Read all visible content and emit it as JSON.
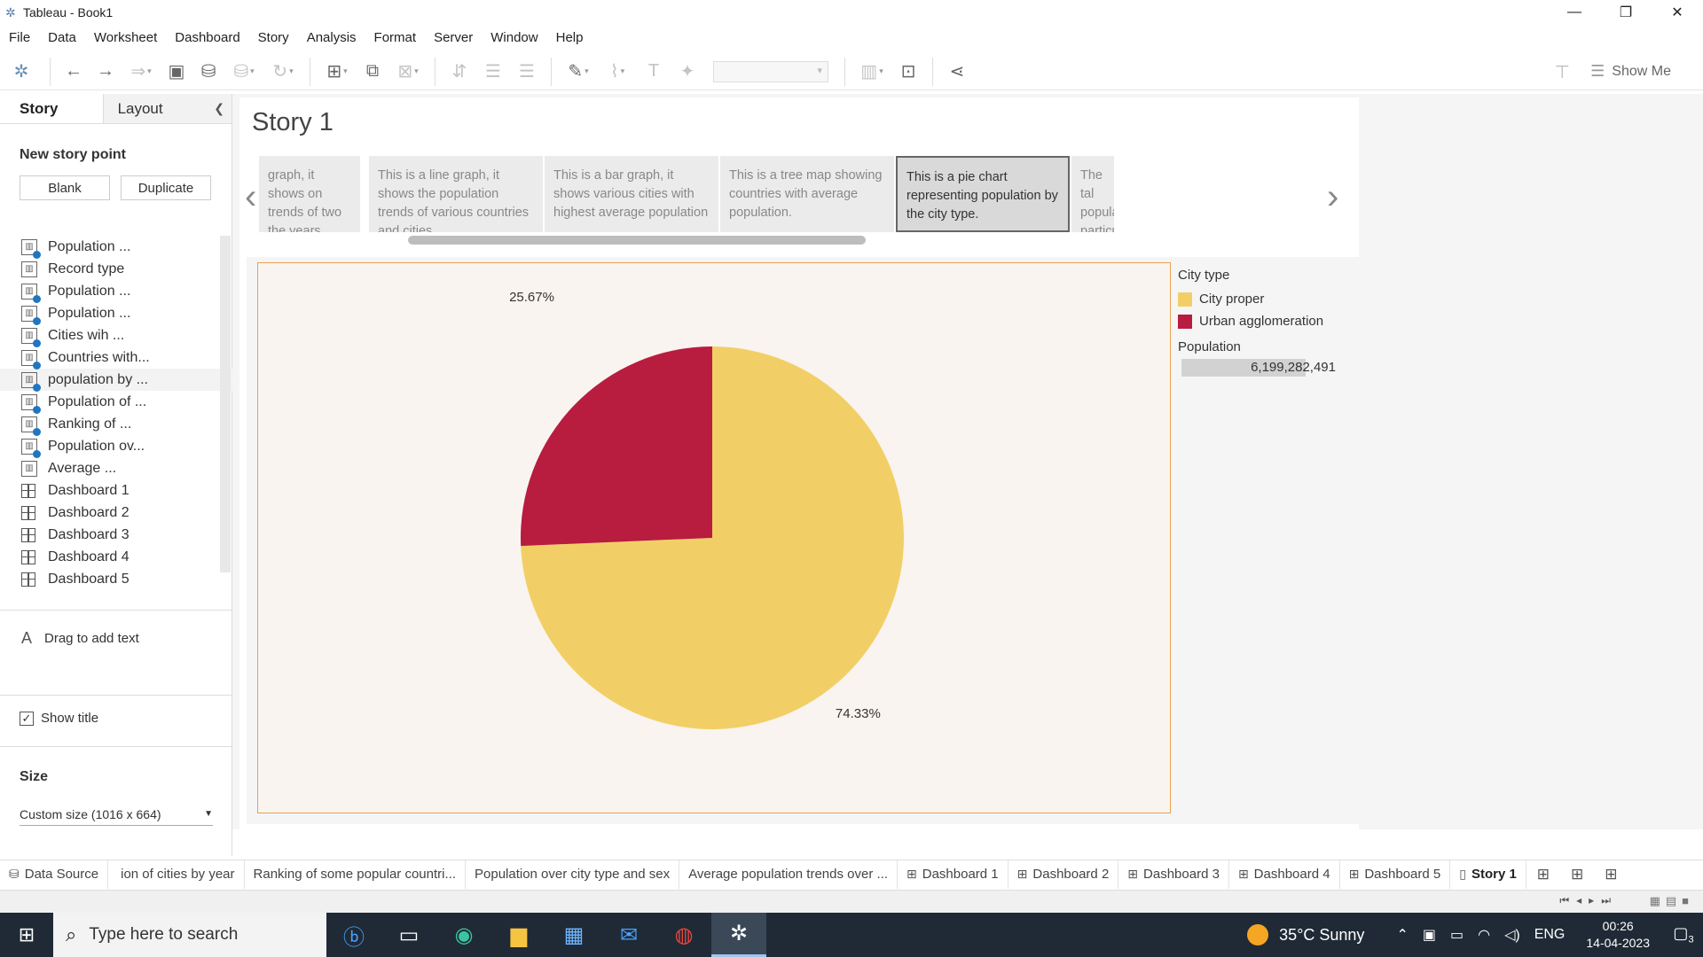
{
  "window": {
    "title": "Tableau - Book1"
  },
  "menu": [
    "File",
    "Data",
    "Worksheet",
    "Dashboard",
    "Story",
    "Analysis",
    "Format",
    "Server",
    "Window",
    "Help"
  ],
  "toolbar": {
    "show_me": "Show Me"
  },
  "left_pane": {
    "tab_story": "Story",
    "tab_layout": "Layout",
    "new_story_point": "New story point",
    "blank_button": "Blank",
    "duplicate_button": "Duplicate",
    "sheets": [
      {
        "label": "Population ...",
        "kind": "sheet"
      },
      {
        "label": "Record type",
        "kind": "sheet"
      },
      {
        "label": "Population ...",
        "kind": "sheet"
      },
      {
        "label": "Population ...",
        "kind": "sheet"
      },
      {
        "label": "Cities wih ...",
        "kind": "sheet"
      },
      {
        "label": "Countries with...",
        "kind": "sheet"
      },
      {
        "label": "population by ...",
        "kind": "sheet"
      },
      {
        "label": "Population of ...",
        "kind": "sheet"
      },
      {
        "label": "Ranking of ...",
        "kind": "sheet"
      },
      {
        "label": "Population ov...",
        "kind": "sheet"
      },
      {
        "label": "Average ...",
        "kind": "sheet"
      },
      {
        "label": "Dashboard 1",
        "kind": "dashboard"
      },
      {
        "label": "Dashboard 2",
        "kind": "dashboard"
      },
      {
        "label": "Dashboard 3",
        "kind": "dashboard"
      },
      {
        "label": "Dashboard 4",
        "kind": "dashboard"
      },
      {
        "label": "Dashboard 5",
        "kind": "dashboard"
      }
    ],
    "drag_to_add_text": "Drag to add text",
    "show_title": "Show title",
    "size_heading": "Size",
    "size_value": "Custom size (1016 x 664)"
  },
  "story": {
    "title": "Story 1",
    "points": [
      "graph, it shows on trends of two the years.",
      "This is a line graph, it shows the population trends of various countries and cities",
      "This is a bar graph, it shows various cities with highest average population",
      "This is a tree map showing countries with average population.",
      "This is a pie chart representing population by the city type.",
      "The tal popula particu"
    ],
    "active_point": 4
  },
  "chart_data": {
    "type": "pie",
    "title": "",
    "slices": [
      {
        "label": "City proper",
        "value": 74.33,
        "display": "74.33%",
        "color": "#f2cf66"
      },
      {
        "label": "Urban agglomeration",
        "value": 25.67,
        "display": "25.67%",
        "color": "#b81c3f"
      }
    ],
    "legend_title": "City type",
    "legend_placement": "right"
  },
  "population_filter": {
    "title": "Population",
    "value": "6,199,282,491"
  },
  "bottom_tabs": {
    "items": [
      {
        "label": "Data Source",
        "icon": "database-icon"
      },
      {
        "label": "ion of cities by year",
        "icon": ""
      },
      {
        "label": "Ranking of some popular countri...",
        "icon": ""
      },
      {
        "label": "Population over city type and sex",
        "icon": ""
      },
      {
        "label": "Average population trends over ...",
        "icon": ""
      },
      {
        "label": "Dashboard 1",
        "icon": "dashboard-icon"
      },
      {
        "label": "Dashboard 2",
        "icon": "dashboard-icon"
      },
      {
        "label": "Dashboard 3",
        "icon": "dashboard-icon"
      },
      {
        "label": "Dashboard 4",
        "icon": "dashboard-icon"
      },
      {
        "label": "Dashboard 5",
        "icon": "dashboard-icon"
      },
      {
        "label": "Story 1",
        "icon": "story-icon"
      }
    ],
    "active": "Story 1"
  },
  "taskbar": {
    "search_placeholder": "Type here to search",
    "weather": "35°C  Sunny",
    "language": "ENG",
    "time": "00:26",
    "date": "14-04-2023",
    "notification_count": "3"
  }
}
